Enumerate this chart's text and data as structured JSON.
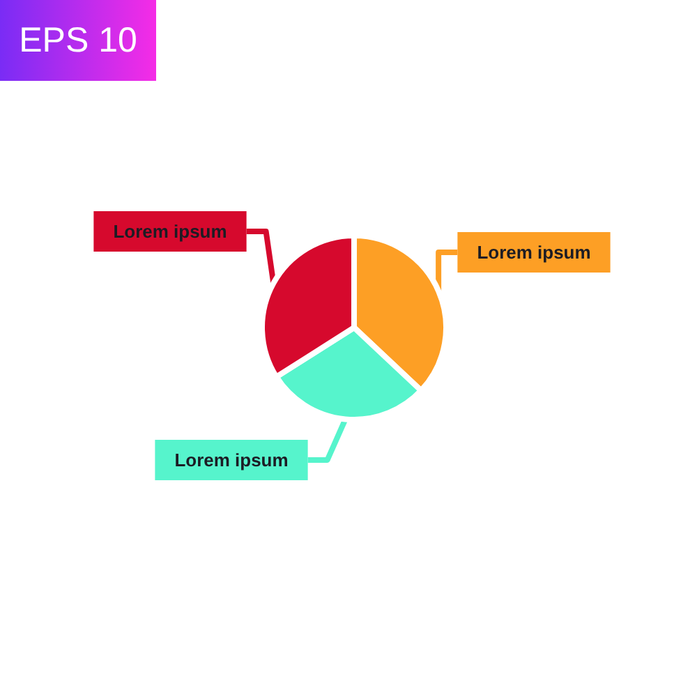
{
  "chart_data": {
    "type": "pie",
    "categories": [
      "Lorem ipsum",
      "Lorem ipsum",
      "Lorem ipsum"
    ],
    "values": [
      37,
      29,
      34
    ],
    "colors": [
      "#fd9f25",
      "#56f4cc",
      "#d6092d"
    ],
    "annotations": [
      "EPS 10"
    ]
  }
}
